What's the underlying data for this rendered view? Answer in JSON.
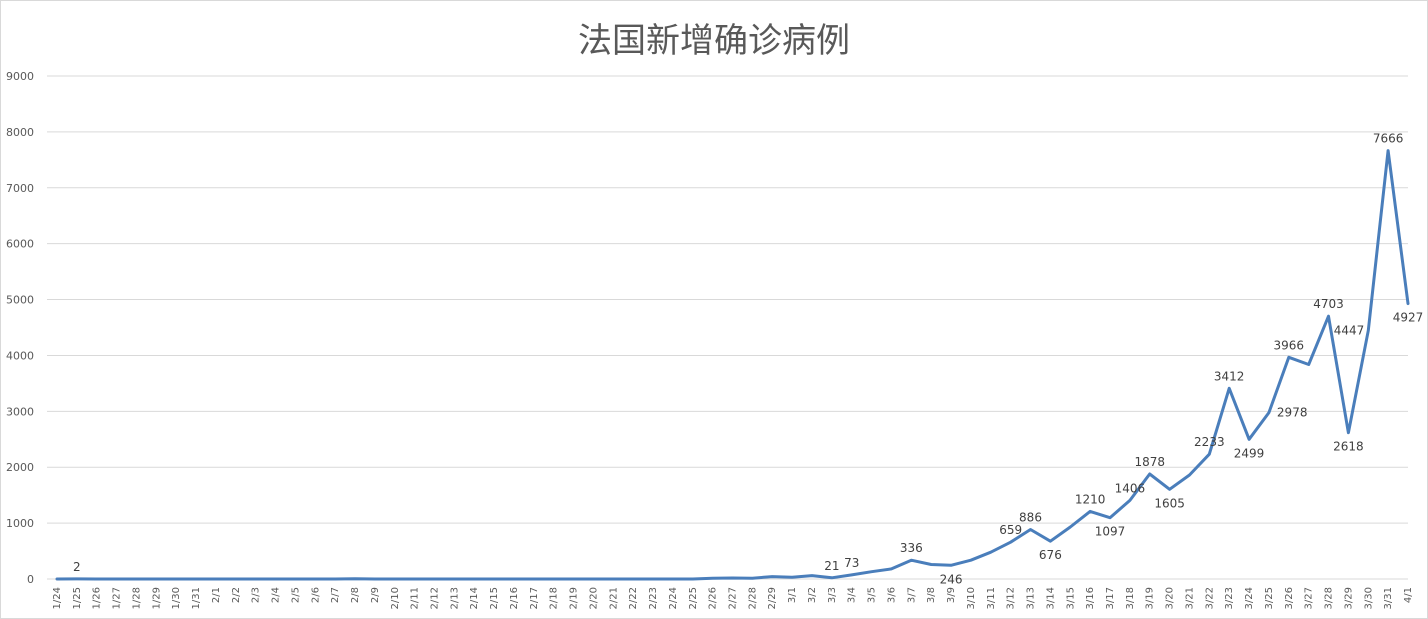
{
  "chart_data": {
    "type": "line",
    "title": "法国新增确诊病例",
    "xlabel": "",
    "ylabel": "",
    "ylim": [
      0,
      9000
    ],
    "yticks": [
      0,
      1000,
      2000,
      3000,
      4000,
      5000,
      6000,
      7000,
      8000,
      9000
    ],
    "grid": true,
    "legend": "none",
    "line_color": "#4a7ebb",
    "categories": [
      "1/24",
      "1/25",
      "1/26",
      "1/27",
      "1/28",
      "1/29",
      "1/30",
      "1/31",
      "2/1",
      "2/2",
      "2/3",
      "2/4",
      "2/5",
      "2/6",
      "2/7",
      "2/8",
      "2/9",
      "2/10",
      "2/11",
      "2/12",
      "2/13",
      "2/14",
      "2/15",
      "2/16",
      "2/17",
      "2/18",
      "2/19",
      "2/20",
      "2/21",
      "2/22",
      "2/23",
      "2/24",
      "2/25",
      "2/26",
      "2/27",
      "2/28",
      "2/29",
      "3/1",
      "3/2",
      "3/3",
      "3/4",
      "3/5",
      "3/6",
      "3/7",
      "3/8",
      "3/9",
      "3/10",
      "3/11",
      "3/12",
      "3/13",
      "3/14",
      "3/15",
      "3/16",
      "3/17",
      "3/18",
      "3/19",
      "3/20",
      "3/21",
      "3/22",
      "3/23",
      "3/24",
      "3/25",
      "3/26",
      "3/27",
      "3/28",
      "3/29",
      "3/30",
      "3/31",
      "4/1"
    ],
    "values": [
      0,
      2,
      0,
      0,
      0,
      0,
      0,
      0,
      0,
      0,
      0,
      0,
      0,
      0,
      0,
      5,
      0,
      0,
      0,
      0,
      0,
      0,
      0,
      0,
      0,
      0,
      0,
      0,
      0,
      0,
      0,
      0,
      0,
      12,
      18,
      15,
      43,
      30,
      61,
      21,
      73,
      130,
      180,
      336,
      260,
      246,
      336,
      480,
      659,
      886,
      676,
      930,
      1210,
      1097,
      1406,
      1878,
      1605,
      1861,
      2233,
      3412,
      2499,
      2978,
      3966,
      3838,
      4703,
      2618,
      4447,
      7666,
      4927
    ],
    "data_labels": [
      {
        "index": 1,
        "text": "2",
        "pos": "above"
      },
      {
        "index": 39,
        "text": "21",
        "pos": "above"
      },
      {
        "index": 40,
        "text": "73",
        "pos": "above"
      },
      {
        "index": 43,
        "text": "336",
        "pos": "above"
      },
      {
        "index": 45,
        "text": "246",
        "pos": "below"
      },
      {
        "index": 48,
        "text": "659",
        "pos": "above"
      },
      {
        "index": 49,
        "text": "886",
        "pos": "above"
      },
      {
        "index": 50,
        "text": "676",
        "pos": "below"
      },
      {
        "index": 52,
        "text": "1210",
        "pos": "above"
      },
      {
        "index": 53,
        "text": "1097",
        "pos": "below"
      },
      {
        "index": 54,
        "text": "1406",
        "pos": "above"
      },
      {
        "index": 55,
        "text": "1878",
        "pos": "above"
      },
      {
        "index": 56,
        "text": "1605",
        "pos": "below"
      },
      {
        "index": 58,
        "text": "2233",
        "pos": "above"
      },
      {
        "index": 59,
        "text": "3412",
        "pos": "above"
      },
      {
        "index": 60,
        "text": "2499",
        "pos": "below"
      },
      {
        "index": 61,
        "text": "2978",
        "pos": "right"
      },
      {
        "index": 62,
        "text": "3966",
        "pos": "above"
      },
      {
        "index": 64,
        "text": "4703",
        "pos": "above"
      },
      {
        "index": 65,
        "text": "2618",
        "pos": "below"
      },
      {
        "index": 66,
        "text": "4447",
        "pos": "left"
      },
      {
        "index": 67,
        "text": "7666",
        "pos": "above"
      },
      {
        "index": 68,
        "text": "4927",
        "pos": "below"
      }
    ]
  }
}
